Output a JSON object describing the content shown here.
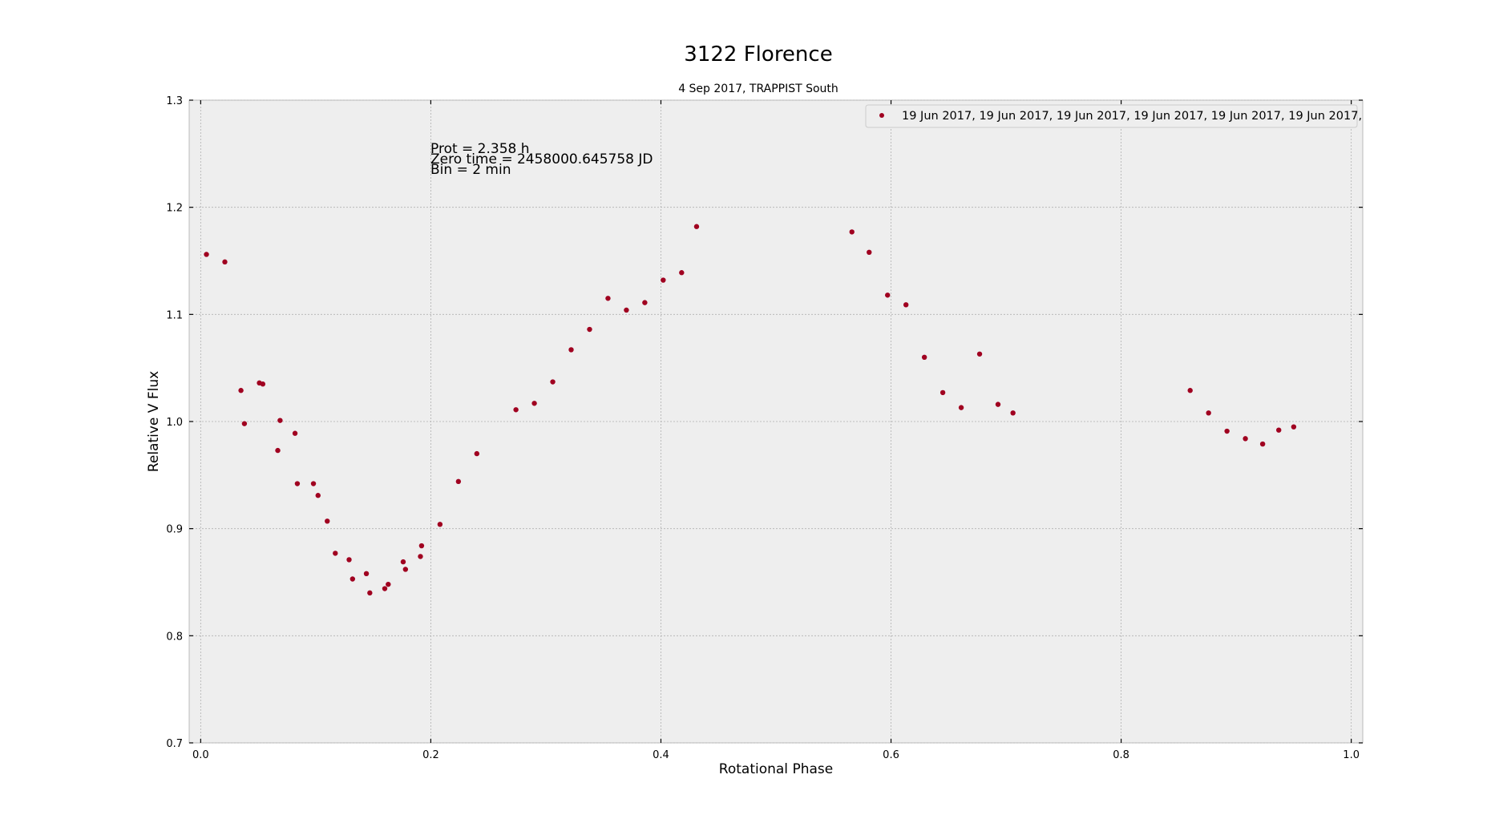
{
  "chart_data": {
    "type": "scatter",
    "title": "3122 Florence",
    "subtitle": "4 Sep 2017, TRAPPIST South",
    "xlabel": "Rotational Phase",
    "ylabel": "Relative V Flux",
    "xlim": [
      -0.01,
      1.01
    ],
    "ylim": [
      0.7,
      1.3
    ],
    "xticks": [
      0.0,
      0.2,
      0.4,
      0.6,
      0.8,
      1.0
    ],
    "xtick_labels": [
      "0.0",
      "0.2",
      "0.4",
      "0.6",
      "0.8",
      "1.0"
    ],
    "yticks": [
      0.7,
      0.8,
      0.9,
      1.0,
      1.1,
      1.2,
      1.3
    ],
    "ytick_labels": [
      "0.7",
      "0.8",
      "0.9",
      "1.0",
      "1.1",
      "1.2",
      "1.3"
    ],
    "grid": true,
    "legend_position": "top-right",
    "marker_color": "#A00020",
    "background_color": "#EEEEEE",
    "annotations": [
      "Prot = 2.358 h",
      "Zero time = 2458000.645758 JD",
      "Bin = 2 min"
    ],
    "series": [
      {
        "name": "19 Jun 2017, 19 Jun 2017, 19 Jun 2017, 19 Jun 2017, 19 Jun 2017, 19 Jun 2017,",
        "x": [
          0.005,
          0.021,
          0.035,
          0.038,
          0.051,
          0.054,
          0.067,
          0.069,
          0.082,
          0.084,
          0.098,
          0.102,
          0.11,
          0.117,
          0.129,
          0.132,
          0.144,
          0.147,
          0.16,
          0.163,
          0.176,
          0.178,
          0.191,
          0.192,
          0.208,
          0.224,
          0.24,
          0.274,
          0.29,
          0.306,
          0.322,
          0.338,
          0.354,
          0.37,
          0.386,
          0.402,
          0.418,
          0.431,
          0.566,
          0.581,
          0.597,
          0.613,
          0.629,
          0.645,
          0.661,
          0.677,
          0.693,
          0.706,
          0.86,
          0.876,
          0.892,
          0.908,
          0.923,
          0.937,
          0.95
        ],
        "y": [
          1.156,
          1.149,
          1.029,
          0.998,
          1.036,
          1.035,
          0.973,
          1.001,
          0.989,
          0.942,
          0.942,
          0.931,
          0.907,
          0.877,
          0.871,
          0.853,
          0.858,
          0.84,
          0.844,
          0.848,
          0.869,
          0.862,
          0.874,
          0.884,
          0.904,
          0.944,
          0.97,
          1.011,
          1.017,
          1.037,
          1.067,
          1.086,
          1.115,
          1.104,
          1.111,
          1.132,
          1.139,
          1.182,
          1.177,
          1.158,
          1.118,
          1.109,
          1.06,
          1.027,
          1.013,
          1.063,
          1.016,
          1.008,
          1.029,
          1.008,
          0.991,
          0.984,
          0.979,
          0.992,
          0.995
        ]
      }
    ]
  }
}
